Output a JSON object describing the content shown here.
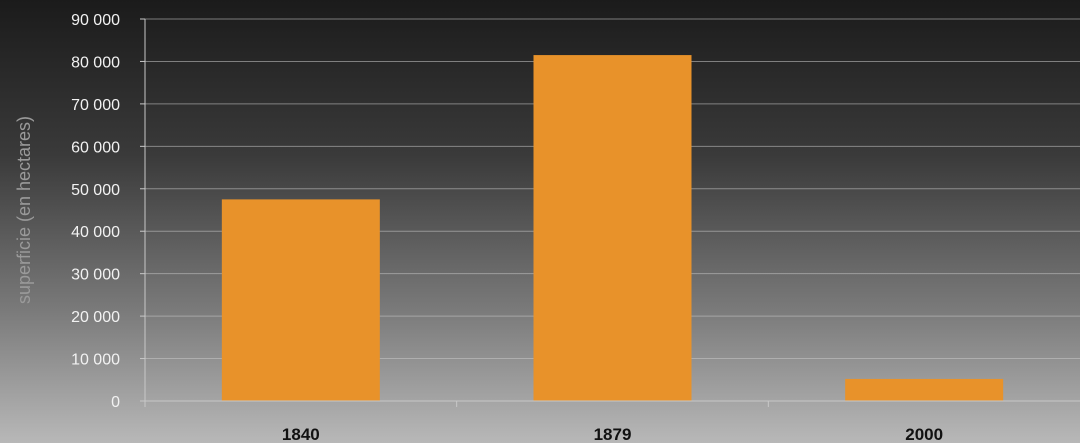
{
  "chart_data": {
    "type": "bar",
    "categories": [
      "1840",
      "1879",
      "2000"
    ],
    "values": [
      47500,
      81500,
      5200
    ],
    "ylabel": "superficie (en hectares)",
    "ylim": [
      0,
      90000
    ],
    "yticks": [
      0,
      10000,
      20000,
      30000,
      40000,
      50000,
      60000,
      70000,
      80000,
      90000
    ],
    "ytick_labels": [
      "0",
      "10 000",
      "20 000",
      "30 000",
      "40 000",
      "50 000",
      "60 000",
      "70 000",
      "80 000",
      "90 000"
    ],
    "grid": true,
    "legend": "none",
    "colors": {
      "bar": "#e8922a",
      "grid": "#c8c8c8",
      "tick_text": "#f2f2f2",
      "category_text": "#111111",
      "axis_title": "#9a9a9a"
    }
  }
}
